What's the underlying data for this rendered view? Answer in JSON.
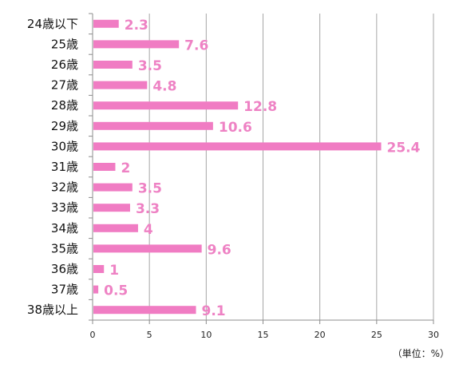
{
  "chart_data": {
    "type": "bar",
    "orientation": "horizontal",
    "categories": [
      "24歳以下",
      "25歳",
      "26歳",
      "27歳",
      "28歳",
      "29歳",
      "30歳",
      "31歳",
      "32歳",
      "33歳",
      "34歳",
      "35歳",
      "36歳",
      "37歳",
      "38歳以上"
    ],
    "values": [
      2.3,
      7.6,
      3.5,
      4.8,
      12.8,
      10.6,
      25.4,
      2,
      3.5,
      3.3,
      4,
      9.6,
      1,
      0.5,
      9.1
    ],
    "value_labels": [
      "2.3",
      "7.6",
      "3.5",
      "4.8",
      "12.8",
      "10.6",
      "25.4",
      "2",
      "3.5",
      "3.3",
      "4",
      "9.6",
      "1",
      "0.5",
      "9.1"
    ],
    "xlim": [
      0,
      30
    ],
    "x_ticks": [
      "0",
      "5",
      "10",
      "15",
      "20",
      "25",
      "30"
    ],
    "unit_note": "（単位：%）",
    "grid": "vertical",
    "legend": "none",
    "colors": {
      "bar": "#F07CC3",
      "label": "#EE82C4",
      "grid": "#A6A6A6",
      "axis": "#8C8C8C"
    }
  }
}
